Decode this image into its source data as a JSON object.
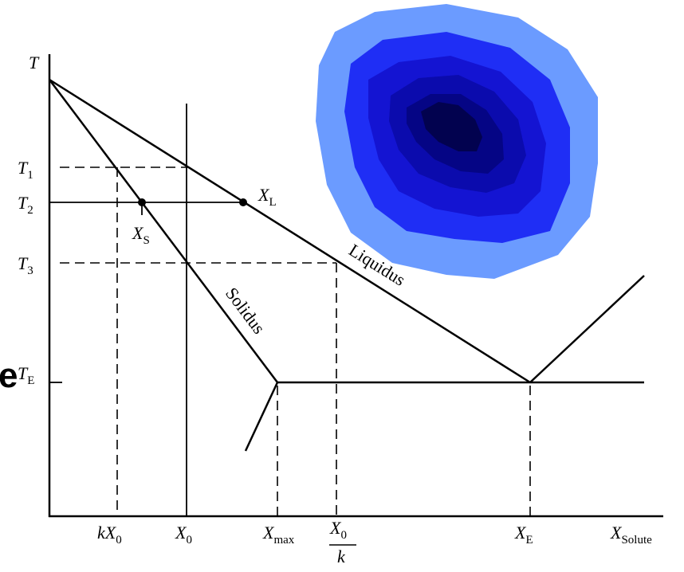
{
  "fragment": "e",
  "y_axis": "T",
  "temperatures": [
    {
      "main": "T",
      "sub": "1"
    },
    {
      "main": "T",
      "sub": "2"
    },
    {
      "main": "T",
      "sub": "3"
    },
    {
      "main": "T",
      "sub": "E"
    }
  ],
  "points": {
    "liquid": {
      "main": "X",
      "sub": "L"
    },
    "solid": {
      "main": "X",
      "sub": "S"
    }
  },
  "curves": {
    "liquidus": "Liquidus",
    "solidus": "Solidus"
  },
  "x_labels": {
    "kx0": {
      "pre": "k",
      "main": "X",
      "sub": "0"
    },
    "x0": {
      "main": "X",
      "sub": "0"
    },
    "xmax": {
      "main": "X",
      "sub": "max"
    },
    "x0k": {
      "main": "X",
      "sub": "0",
      "den": "k"
    },
    "xe": {
      "main": "X",
      "sub": "E"
    },
    "solute": {
      "main": "X",
      "sub": "Solute"
    }
  }
}
